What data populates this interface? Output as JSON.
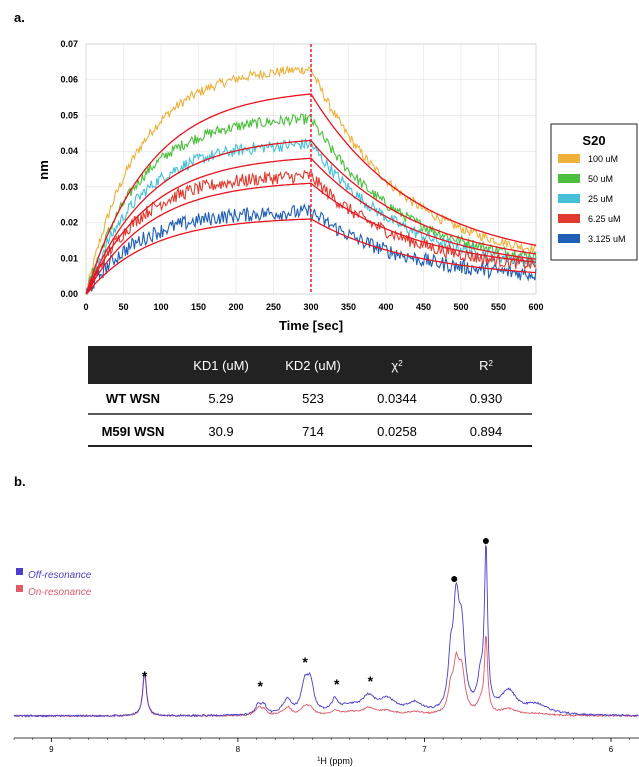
{
  "panel_labels": {
    "a": "a.",
    "b": "b."
  },
  "chart_data": [
    {
      "type": "line",
      "xlabel": "Time [sec]",
      "ylabel": "nm",
      "xlim": [
        0,
        600
      ],
      "ylim": [
        0,
        0.07
      ],
      "x_ticks": [
        "0",
        "50",
        "100",
        "150",
        "200",
        "250",
        "300",
        "350",
        "400",
        "450",
        "500",
        "550",
        "600"
      ],
      "y_ticks": [
        "0.00",
        "0.01",
        "0.02",
        "0.03",
        "0.04",
        "0.05",
        "0.06",
        "0.07"
      ],
      "vertical_marker_x": 300,
      "grid": true,
      "legend_title": "S20",
      "legend_placement": "right",
      "series": [
        {
          "name": "100 uM",
          "color": "#f0b03c",
          "peak": 0.063,
          "fit_peak": 0.056,
          "end": 0.008
        },
        {
          "name": "50 uM",
          "color": "#4cbf3c",
          "peak": 0.049,
          "fit_peak": 0.043,
          "end": 0.007
        },
        {
          "name": "25 uM",
          "color": "#45c0d8",
          "peak": 0.042,
          "fit_peak": 0.038,
          "end": 0.006
        },
        {
          "name": "6.25 uM",
          "color": "#e23a2e",
          "peak": 0.033,
          "fit_peak": 0.031,
          "end": 0.006
        },
        {
          "name": "3.125 uM",
          "color": "#1f5fb5",
          "peak": 0.023,
          "fit_peak": 0.021,
          "end": 0.004
        }
      ],
      "fit_color": "#e8141e"
    },
    {
      "type": "table",
      "columns": [
        "",
        "KD1 (uM)",
        "KD2 (uM)",
        "χ2",
        "R2"
      ],
      "rows": [
        {
          "label": "WT WSN",
          "kd1": "5.29",
          "kd2": "523",
          "chi2": "0.0344",
          "r2": "0.930"
        },
        {
          "label": "M59I WSN",
          "kd1": "30.9",
          "kd2": "714",
          "chi2": "0.0258",
          "r2": "0.894"
        }
      ]
    },
    {
      "type": "line",
      "xlabel": "1H (ppm)",
      "x_reversed": true,
      "xlim": [
        9.2,
        5.85
      ],
      "x_ticks": [
        "9",
        "8",
        "7",
        "6"
      ],
      "series": [
        {
          "name": "Off-resonance",
          "color": "#4b3fc9"
        },
        {
          "name": "On-resonance",
          "color": "#e05a6a"
        }
      ],
      "peaks_ppm": [
        8.5,
        7.88,
        7.62,
        7.48,
        7.28,
        6.83,
        6.67
      ],
      "annotations": [
        {
          "symbol": "*",
          "ppm": 8.5
        },
        {
          "symbol": "*",
          "ppm": 7.88
        },
        {
          "symbol": "*",
          "ppm": 7.64
        },
        {
          "symbol": "*",
          "ppm": 7.47
        },
        {
          "symbol": "*",
          "ppm": 7.29
        },
        {
          "symbol": "●",
          "ppm": 6.84
        },
        {
          "symbol": "●",
          "ppm": 6.67
        }
      ]
    }
  ]
}
